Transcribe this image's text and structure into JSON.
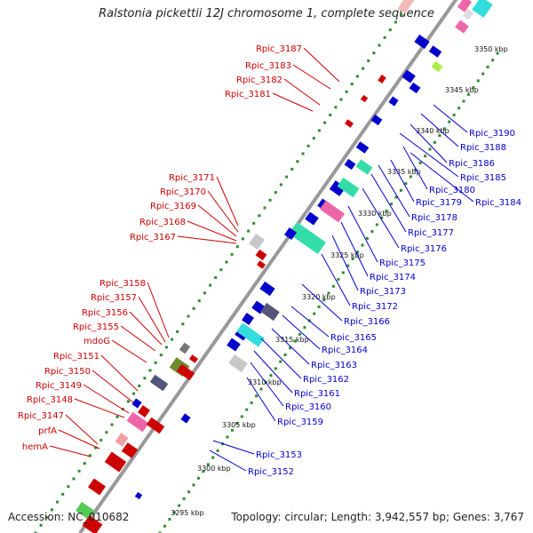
{
  "title": "Ralstonia pickettii 12J chromosome 1, complete sequence",
  "accession": "Accession: NC_010682",
  "topology_summary": "Topology: circular; Length: 3,942,557 bp; Genes: 3,767",
  "scale_unit": "kbp",
  "scale_ticks": [
    "3295 kbp",
    "3300 kbp",
    "3305 kbp",
    "3310 kbp",
    "3315 kbp",
    "3320 kbp",
    "3325 kbp",
    "3330 kbp",
    "3335 kbp",
    "3340 kbp",
    "3345 kbp",
    "3350 kbp"
  ],
  "colors": {
    "forward_label": "#cc0000",
    "reverse_label": "#0000cc",
    "backbone": "#999999",
    "dots": "#2e8b2e"
  },
  "forward_labels": [
    "Rpic_3187",
    "Rpic_3183",
    "Rpic_3182",
    "Rpic_3181",
    "Rpic_3171",
    "Rpic_3170",
    "Rpic_3169",
    "Rpic_3168",
    "Rpic_3167",
    "Rpic_3158",
    "Rpic_3157",
    "Rpic_3156",
    "Rpic_3155",
    "mdoG",
    "Rpic_3151",
    "Rpic_3150",
    "Rpic_3149",
    "Rpic_3148",
    "Rpic_3147",
    "prfA",
    "hemA"
  ],
  "reverse_labels": [
    "Rpic_3190",
    "Rpic_3188",
    "Rpic_3186",
    "Rpic_3185",
    "Rpic_3180",
    "Rpic_3184",
    "Rpic_3179",
    "Rpic_3178",
    "Rpic_3177",
    "Rpic_3176",
    "Rpic_3175",
    "Rpic_3174",
    "Rpic_3173",
    "Rpic_3172",
    "Rpic_3166",
    "Rpic_3165",
    "Rpic_3164",
    "Rpic_3163",
    "Rpic_3162",
    "Rpic_3161",
    "Rpic_3160",
    "Rpic_3159",
    "Rpic_3153",
    "Rpic_3152"
  ]
}
